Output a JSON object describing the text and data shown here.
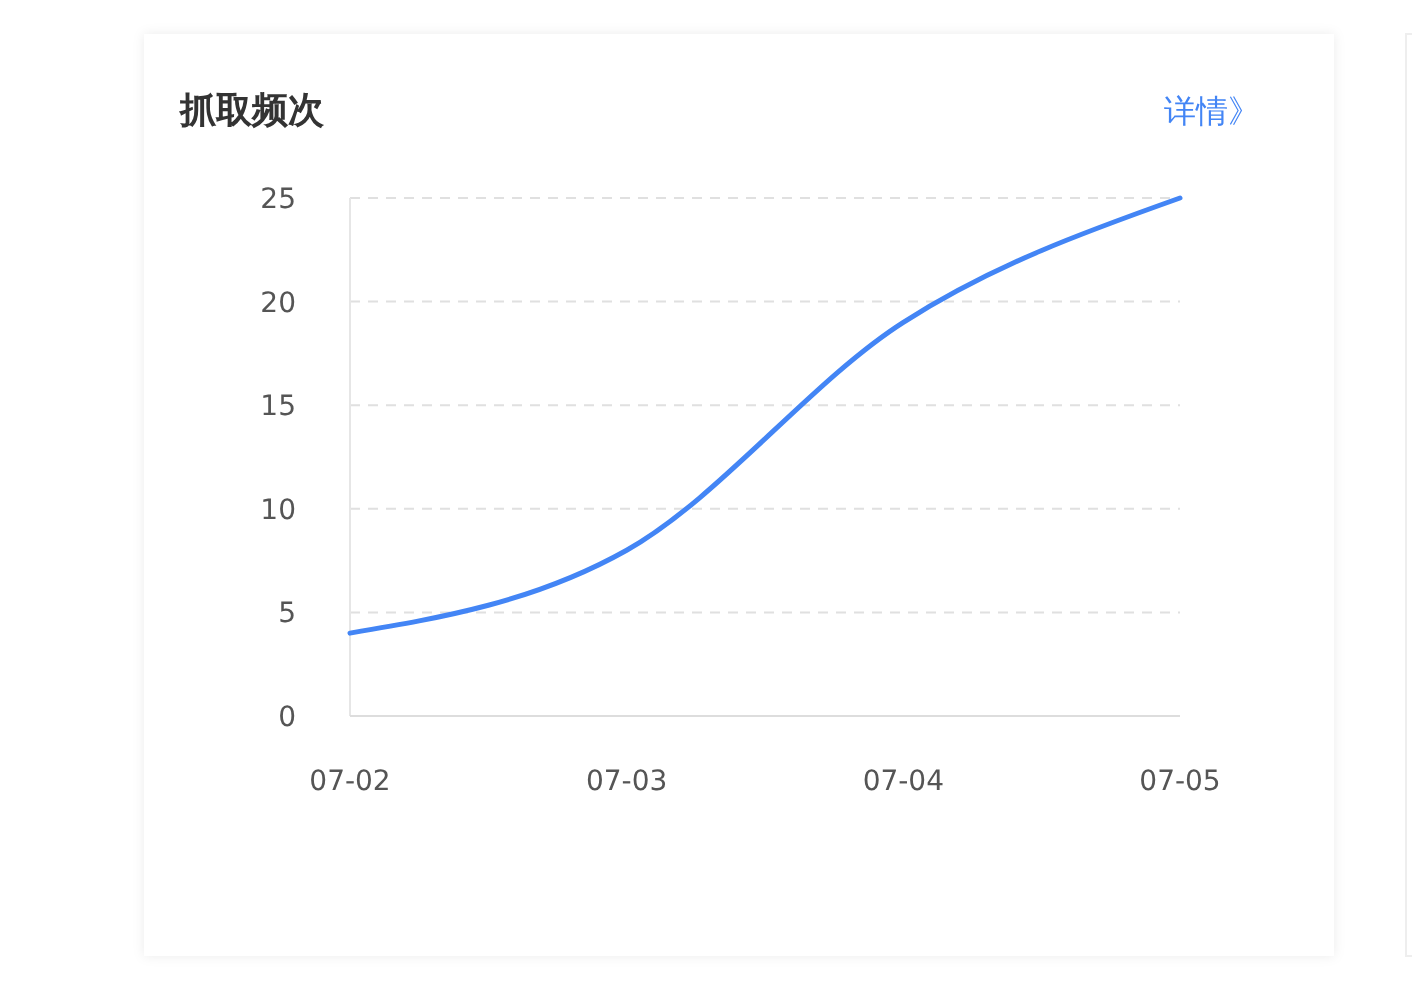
{
  "chart_data": {
    "type": "line",
    "title": "抓取频次",
    "annotations": [
      "详情》"
    ],
    "categories": [
      "07-02",
      "07-03",
      "07-04",
      "07-05"
    ],
    "series": [
      {
        "color": "#4385f5",
        "values": [
          4,
          8,
          19,
          25
        ]
      }
    ],
    "ylim": [
      0,
      25
    ],
    "yticks": [
      0,
      5,
      10,
      15,
      20,
      25
    ],
    "grid": "y",
    "line_style": "solid",
    "marker": "none"
  }
}
